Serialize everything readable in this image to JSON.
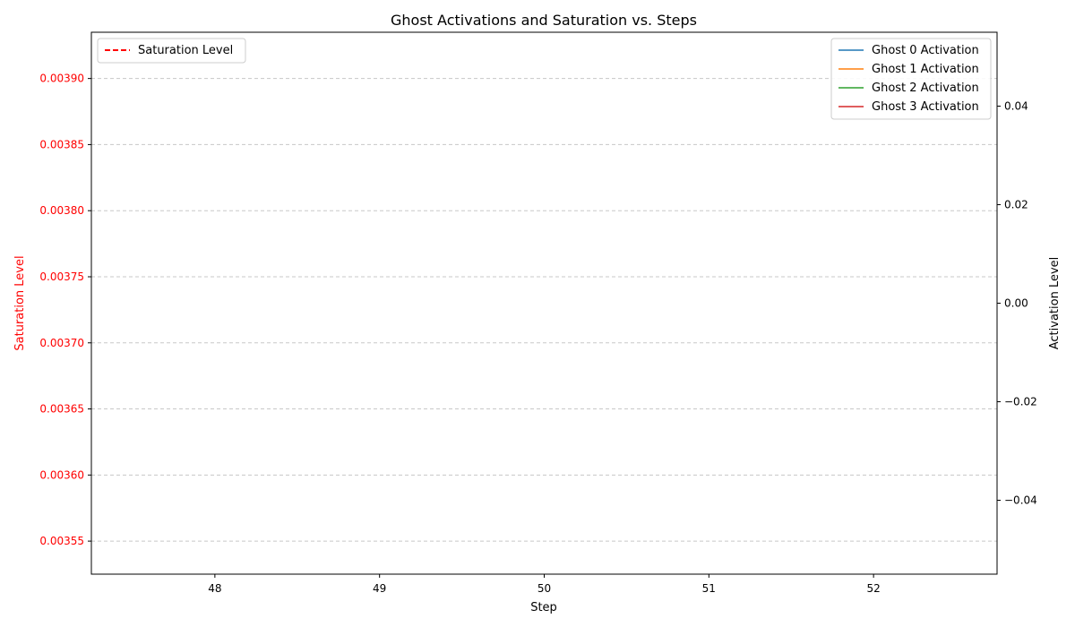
{
  "chart_data": {
    "type": "line",
    "title": "Ghost Activations and Saturation vs. Steps",
    "xlabel": "Step",
    "ylabel_left": "Saturation Level",
    "ylabel_right": "Activation Level",
    "xlim": [
      47.25,
      52.75
    ],
    "x_ticks": [
      "48",
      "49",
      "50",
      "51",
      "52"
    ],
    "left_axis": {
      "ylim": [
        0.003525,
        0.003935
      ],
      "ticks": [
        0.00355,
        0.0036,
        0.00365,
        0.0037,
        0.00375,
        0.0038,
        0.00385,
        0.0039
      ],
      "tick_labels": [
        "0.00355",
        "0.00360",
        "0.00365",
        "0.00370",
        "0.00375",
        "0.00380",
        "0.00385",
        "0.00390"
      ],
      "color": "#ff0000"
    },
    "right_axis": {
      "ylim": [
        -0.055,
        0.055
      ],
      "ticks": [
        -0.04,
        -0.02,
        0.0,
        0.02,
        0.04
      ],
      "tick_labels": [
        "−0.04",
        "−0.02",
        "0.00",
        "0.02",
        "0.04"
      ],
      "color": "#000000"
    },
    "grid": "horizontal-dashed",
    "legend_left": {
      "placement": "top-left",
      "entries": [
        {
          "label": "Saturation Level",
          "color": "#ff0000",
          "style": "dashed"
        }
      ]
    },
    "legend_right": {
      "placement": "top-right",
      "entries": [
        {
          "label": "Ghost 0 Activation",
          "color": "#1f77b4",
          "style": "solid"
        },
        {
          "label": "Ghost 1 Activation",
          "color": "#ff7f0e",
          "style": "solid"
        },
        {
          "label": "Ghost 2 Activation",
          "color": "#2ca02c",
          "style": "solid"
        },
        {
          "label": "Ghost 3 Activation",
          "color": "#d62728",
          "style": "solid"
        }
      ]
    },
    "series": [
      {
        "name": "Saturation Level",
        "axis": "left",
        "x": [],
        "values": []
      },
      {
        "name": "Ghost 0 Activation",
        "axis": "right",
        "x": [],
        "values": []
      },
      {
        "name": "Ghost 1 Activation",
        "axis": "right",
        "x": [],
        "values": []
      },
      {
        "name": "Ghost 2 Activation",
        "axis": "right",
        "x": [],
        "values": []
      },
      {
        "name": "Ghost 3 Activation",
        "axis": "right",
        "x": [],
        "values": []
      }
    ]
  }
}
